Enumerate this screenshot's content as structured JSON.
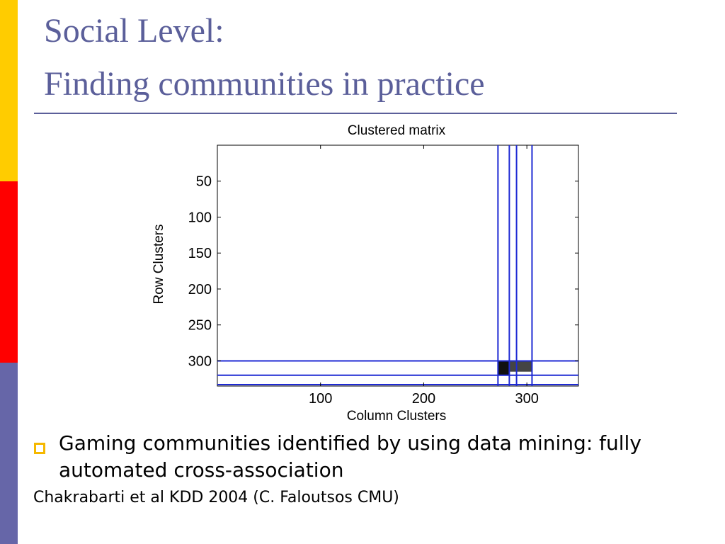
{
  "slide": {
    "title_line1": "Social Level:",
    "title_line2": "Finding communities in practice",
    "bullet_text": "Gaming communities identified by using data mining: fully automated cross-association",
    "citation": "Chakrabarti et al KDD 2004 (C. Faloutsos CMU)"
  },
  "colors": {
    "title": "#5b5f9a",
    "sidebar_top": "#ffcc00",
    "sidebar_middle": "#ff0000",
    "sidebar_bottom": "#6666a8",
    "bullet": "#f5b800",
    "cluster_lines": "#1f2bd4"
  },
  "chart_data": {
    "type": "heatmap",
    "title": "Clustered matrix",
    "xlabel": "Column Clusters",
    "ylabel": "Row Clusters",
    "xlim": [
      0,
      350
    ],
    "ylim": [
      0,
      335
    ],
    "y_inverted": true,
    "x_ticks": [
      100,
      200,
      300
    ],
    "y_ticks": [
      50,
      100,
      150,
      200,
      250,
      300
    ],
    "grid": false,
    "row_cluster_boundaries": [
      300,
      320,
      333
    ],
    "column_cluster_boundaries": [
      272,
      283,
      290,
      305
    ],
    "dense_blocks": [
      {
        "x": [
          272,
          283
        ],
        "y": [
          300,
          320
        ]
      },
      {
        "x": [
          283,
          305
        ],
        "y": [
          300,
          315
        ]
      }
    ]
  }
}
